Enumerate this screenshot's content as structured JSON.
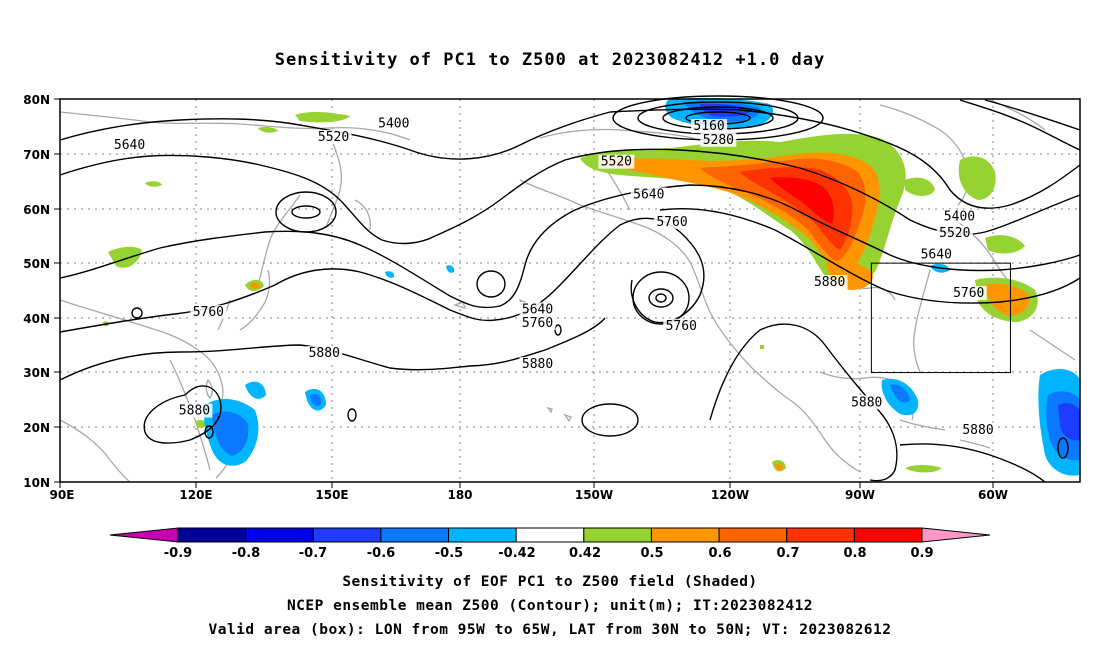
{
  "title": "Sensitivity of PC1 to Z500 at 2023082412 +1.0 day",
  "map": {
    "lat_labels": [
      "80N",
      "70N",
      "60N",
      "50N",
      "40N",
      "30N",
      "20N",
      "10N"
    ],
    "lon_labels": [
      "90E",
      "120E",
      "150E",
      "180",
      "150W",
      "120W",
      "90W",
      "60W"
    ],
    "contour_labels": [
      {
        "text": "5640",
        "lon": 105,
        "lat": 71
      },
      {
        "text": "5520",
        "lon": 149,
        "lat": 72.5
      },
      {
        "text": "5400",
        "lon": 162,
        "lat": 75
      },
      {
        "text": "5160",
        "lon": -130,
        "lat": 74.5
      },
      {
        "text": "5280",
        "lon": -128,
        "lat": 72
      },
      {
        "text": "5520",
        "lon": -150,
        "lat": 68
      },
      {
        "text": "5640",
        "lon": -143,
        "lat": 62
      },
      {
        "text": "5760",
        "lon": -138,
        "lat": 57
      },
      {
        "text": "5400",
        "lon": -76,
        "lat": 58
      },
      {
        "text": "5520",
        "lon": -77,
        "lat": 55
      },
      {
        "text": "5640",
        "lon": -81,
        "lat": 51
      },
      {
        "text": "5880",
        "lon": -104,
        "lat": 46
      },
      {
        "text": "5760",
        "lon": -74,
        "lat": 44
      },
      {
        "text": "5760",
        "lon": 122,
        "lat": 40.5
      },
      {
        "text": "5640",
        "lon": 193,
        "lat": 41
      },
      {
        "text": "5760",
        "lon": 193,
        "lat": 38.5
      },
      {
        "text": "5760",
        "lon": -136,
        "lat": 38
      },
      {
        "text": "5880",
        "lon": 147,
        "lat": 33
      },
      {
        "text": "5880",
        "lon": 193,
        "lat": 31
      },
      {
        "text": "5880",
        "lon": -96,
        "lat": 24
      },
      {
        "text": "5880",
        "lon": -72,
        "lat": 19
      },
      {
        "text": "5880",
        "lon": 119,
        "lat": 22.5
      }
    ],
    "valid_box": {
      "lon_min": -95,
      "lon_max": -65,
      "lat_min": 30,
      "lat_max": 50
    }
  },
  "colorbar": {
    "labels": [
      "-0.9",
      "-0.8",
      "-0.7",
      "-0.6",
      "-0.5",
      "-0.42",
      "0.42",
      "0.5",
      "0.6",
      "0.7",
      "0.8",
      "0.9"
    ],
    "colors": [
      "#000099",
      "#0000e6",
      "#1e3cff",
      "#0a78ff",
      "#00b4ff",
      "#ffffff",
      "#96d232",
      "#ff9600",
      "#ff6400",
      "#ff3200",
      "#ff0000"
    ],
    "low_end_color": "#c800b4",
    "high_end_color": "#ff96c8"
  },
  "captions": {
    "line1": "Sensitivity of EOF PC1 to Z500 field (Shaded)",
    "line2": "NCEP ensemble mean Z500 (Contour); unit(m); IT:2023082412",
    "line3": "Valid area (box): LON from 95W to 65W, LAT from 30N to 50N; VT: 2023082612"
  }
}
